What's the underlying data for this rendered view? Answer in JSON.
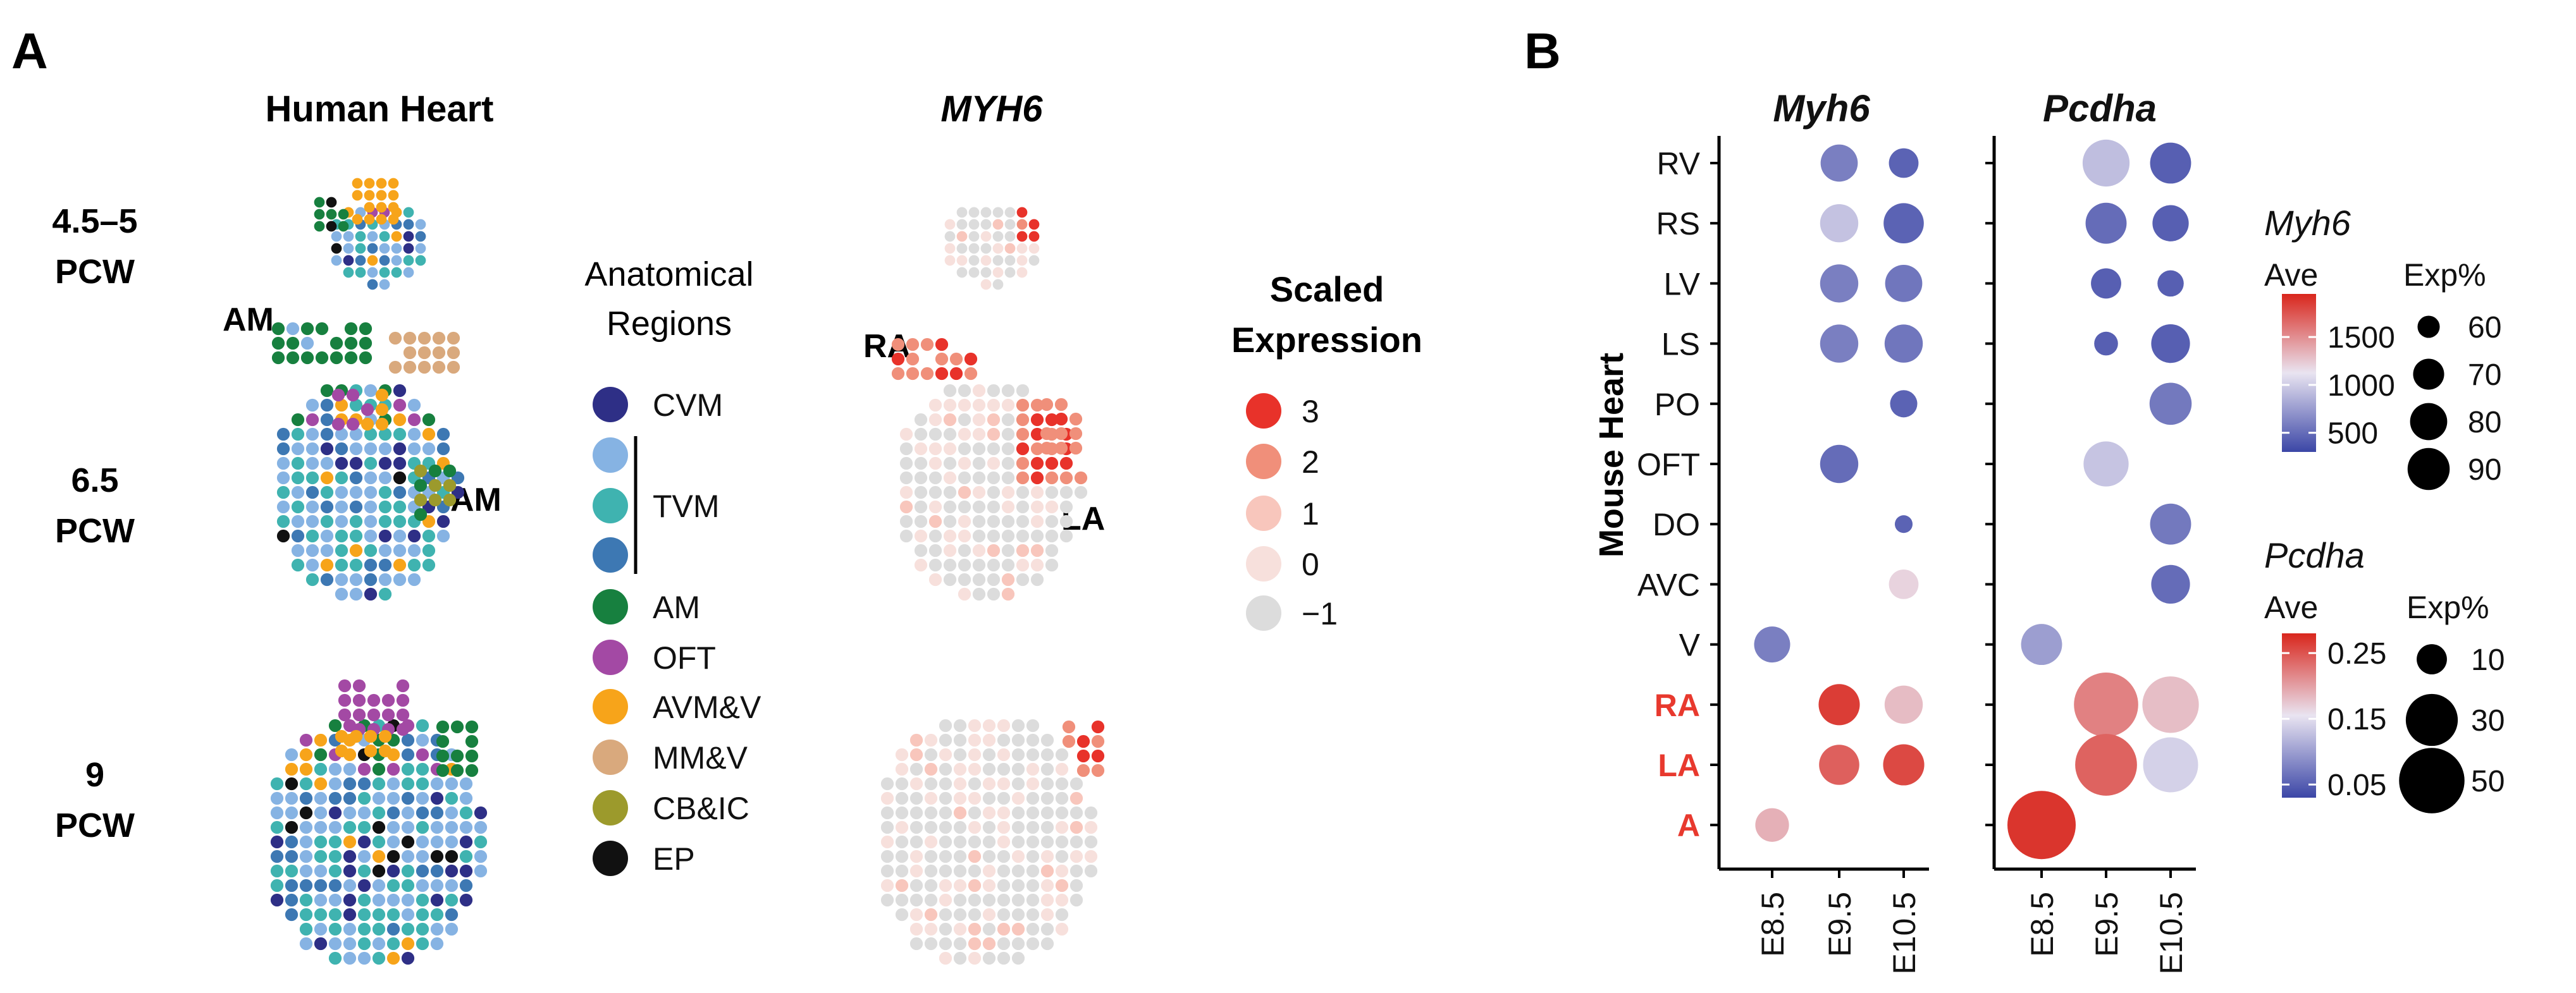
{
  "panel_a": {
    "letter": "A",
    "col_heart_title": "Human Heart",
    "col_gene_title": "MYH6",
    "stages": [
      "4.5–5",
      "PCW",
      "6.5",
      "PCW",
      "9",
      "PCW"
    ],
    "am_labels": [
      "AM",
      "AM"
    ],
    "region_labels": [
      "RA",
      "LA"
    ],
    "region_legend": {
      "title_lines": [
        "Anatomical",
        "Regions"
      ],
      "items": [
        {
          "label": "CVM",
          "color": "#2e2f86"
        },
        {
          "label": "",
          "color": "#86b3e3"
        },
        {
          "label": "TVM",
          "color": "#3fb3b0"
        },
        {
          "label": "",
          "color": "#3d78b3"
        },
        {
          "label": "AM",
          "color": "#17803f"
        },
        {
          "label": "OFT",
          "color": "#a349a4"
        },
        {
          "label": "AVM&V",
          "color": "#f7a41a"
        },
        {
          "label": "MM&V",
          "color": "#d9a97d"
        },
        {
          "label": "CB&IC",
          "color": "#9c9a2c"
        },
        {
          "label": "EP",
          "color": "#111111"
        }
      ]
    },
    "expr_legend": {
      "title_lines": [
        "Scaled",
        "Expression"
      ],
      "items": [
        {
          "label": "3",
          "color": "#e8322a"
        },
        {
          "label": "2",
          "color": "#f08f7a"
        },
        {
          "label": "1",
          "color": "#f8c6bc"
        },
        {
          "label": "0",
          "color": "#f7e0dc"
        },
        {
          "label": "−1",
          "color": "#dcdcdc"
        }
      ]
    }
  },
  "panel_b": {
    "letter": "B",
    "y_axis_title": "Mouse Heart",
    "highlight_color": "#e8392e",
    "highlighted_rows": [
      "RA",
      "LA",
      "A"
    ]
  },
  "chart_data": {
    "type": "scatter",
    "subtype": "dot plot (size = Exp%, color = Ave)",
    "rows": [
      "RV",
      "RS",
      "LV",
      "LS",
      "PO",
      "OFT",
      "DO",
      "AVC",
      "V",
      "RA",
      "LA",
      "A"
    ],
    "x_categories": [
      "E8.5",
      "E9.5",
      "E10.5"
    ],
    "facets": [
      {
        "gene": "Myh6",
        "points": [
          {
            "row": "RV",
            "x": "E9.5",
            "ave": 600,
            "exp": 80
          },
          {
            "row": "RV",
            "x": "E10.5",
            "ave": 450,
            "exp": 68
          },
          {
            "row": "RS",
            "x": "E9.5",
            "ave": 950,
            "exp": 82
          },
          {
            "row": "RS",
            "x": "E10.5",
            "ave": 450,
            "exp": 86
          },
          {
            "row": "LV",
            "x": "E9.5",
            "ave": 600,
            "exp": 82
          },
          {
            "row": "LV",
            "x": "E10.5",
            "ave": 550,
            "exp": 80
          },
          {
            "row": "LS",
            "x": "E9.5",
            "ave": 600,
            "exp": 82
          },
          {
            "row": "LS",
            "x": "E10.5",
            "ave": 550,
            "exp": 82
          },
          {
            "row": "PO",
            "x": "E10.5",
            "ave": 450,
            "exp": 65
          },
          {
            "row": "OFT",
            "x": "E9.5",
            "ave": 500,
            "exp": 82
          },
          {
            "row": "DO",
            "x": "E10.5",
            "ave": 450,
            "exp": 57
          },
          {
            "row": "AVC",
            "x": "E10.5",
            "ave": 1200,
            "exp": 68
          },
          {
            "row": "V",
            "x": "E8.5",
            "ave": 600,
            "exp": 78
          },
          {
            "row": "RA",
            "x": "E9.5",
            "ave": 1850,
            "exp": 88
          },
          {
            "row": "RA",
            "x": "E10.5",
            "ave": 1300,
            "exp": 82
          },
          {
            "row": "LA",
            "x": "E9.5",
            "ave": 1700,
            "exp": 86
          },
          {
            "row": "LA",
            "x": "E10.5",
            "ave": 1800,
            "exp": 88
          },
          {
            "row": "A",
            "x": "E8.5",
            "ave": 1350,
            "exp": 74
          }
        ]
      },
      {
        "gene": "Pcdha",
        "points": [
          {
            "row": "RV",
            "x": "E9.5",
            "ave": 0.125,
            "exp": 24
          },
          {
            "row": "RV",
            "x": "E10.5",
            "ave": 0.05,
            "exp": 18
          },
          {
            "row": "RS",
            "x": "E9.5",
            "ave": 0.06,
            "exp": 18
          },
          {
            "row": "RS",
            "x": "E10.5",
            "ave": 0.05,
            "exp": 14
          },
          {
            "row": "LV",
            "x": "E9.5",
            "ave": 0.05,
            "exp": 10
          },
          {
            "row": "LV",
            "x": "E10.5",
            "ave": 0.05,
            "exp": 8
          },
          {
            "row": "LS",
            "x": "E9.5",
            "ave": 0.05,
            "exp": 7
          },
          {
            "row": "LS",
            "x": "E10.5",
            "ave": 0.05,
            "exp": 16
          },
          {
            "row": "PO",
            "x": "E10.5",
            "ave": 0.07,
            "exp": 19
          },
          {
            "row": "OFT",
            "x": "E9.5",
            "ave": 0.13,
            "exp": 22
          },
          {
            "row": "DO",
            "x": "E10.5",
            "ave": 0.07,
            "exp": 18
          },
          {
            "row": "AVC",
            "x": "E10.5",
            "ave": 0.06,
            "exp": 16
          },
          {
            "row": "V",
            "x": "E8.5",
            "ave": 0.1,
            "exp": 18
          },
          {
            "row": "RA",
            "x": "E9.5",
            "ave": 0.22,
            "exp": 48
          },
          {
            "row": "RA",
            "x": "E10.5",
            "ave": 0.18,
            "exp": 36
          },
          {
            "row": "LA",
            "x": "E9.5",
            "ave": 0.24,
            "exp": 44
          },
          {
            "row": "LA",
            "x": "E10.5",
            "ave": 0.14,
            "exp": 34
          },
          {
            "row": "A",
            "x": "E8.5",
            "ave": 0.27,
            "exp": 55
          }
        ]
      }
    ],
    "legends": [
      {
        "title": "Myh6",
        "color_title": "Ave",
        "color_ticks": [
          500,
          1000,
          1500
        ],
        "color_range": [
          300,
          1950
        ],
        "size_title": "Exp%",
        "size_ticks": [
          60,
          70,
          80,
          90
        ],
        "size_range": [
          55,
          92
        ]
      },
      {
        "title": "Pcdha",
        "color_title": "Ave",
        "color_ticks": [
          0.05,
          0.15,
          0.25
        ],
        "color_range": [
          0.03,
          0.28
        ],
        "size_title": "Exp%",
        "size_ticks": [
          10,
          30,
          50
        ],
        "size_range": [
          5,
          55
        ]
      }
    ]
  }
}
